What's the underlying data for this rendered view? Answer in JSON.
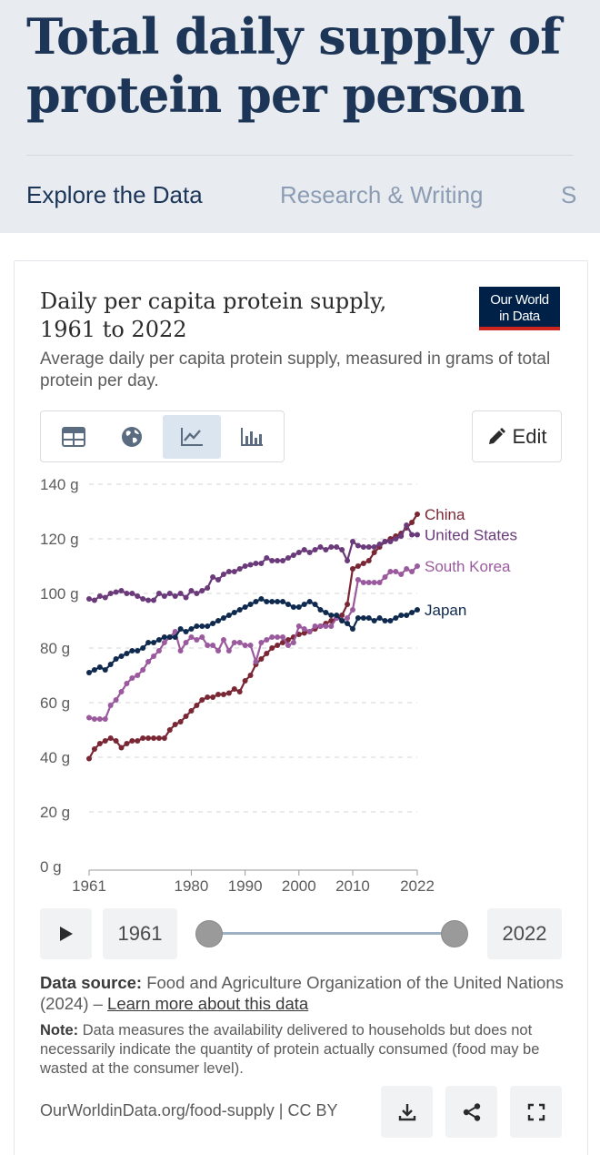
{
  "header": {
    "title": "Total daily supply of protein per person",
    "tabs": [
      "Explore the Data",
      "Research & Writing",
      "S"
    ]
  },
  "chart_card": {
    "logo_line1": "Our World",
    "logo_line2": "in Data",
    "edit_label": "Edit",
    "view_tabs": [
      "table-icon",
      "globe-icon",
      "line-chart-icon",
      "bar-chart-icon"
    ],
    "active_view": "line-chart-icon",
    "start_year": "1961",
    "end_year": "2022",
    "source_label": "Data source:",
    "source_text": "Food and Agriculture Organization of the United Nations (2024) –",
    "source_link": "Learn more about this data",
    "note_label": "Note:",
    "note_text": "Data measures the availability delivered to households but does not necessarily indicate the quantity of protein actually consumed (food may be wasted at the consumer level).",
    "footer_url": "OurWorldinData.org/food-supply | CC BY",
    "footer_buttons": [
      "download-icon",
      "share-icon",
      "fullscreen-icon"
    ]
  },
  "chart_data": {
    "type": "line",
    "title": "Daily per capita protein supply, 1961 to 2022",
    "subtitle": "Average daily per capita protein supply, measured in grams of total protein per day.",
    "unit": " g",
    "ylim": [
      0,
      140
    ],
    "yticks": [
      0,
      20,
      40,
      60,
      80,
      100,
      120,
      140
    ],
    "xticks": [
      1961,
      1980,
      1990,
      2000,
      2010,
      2022
    ],
    "x_start": 1961,
    "x_end": 2022,
    "gridlines": true,
    "legend_placement": "right-line-labels",
    "series": [
      {
        "name": "China",
        "color": "#7a2735",
        "anchors": [
          [
            1961,
            39.5
          ],
          [
            1962,
            43
          ],
          [
            1963,
            45
          ],
          [
            1964,
            46
          ],
          [
            1965,
            47
          ],
          [
            1966,
            46
          ],
          [
            1967,
            43.5
          ],
          [
            1968,
            45
          ],
          [
            1969,
            46
          ],
          [
            1970,
            46
          ],
          [
            1971,
            47
          ],
          [
            1972,
            47
          ],
          [
            1973,
            47
          ],
          [
            1974,
            47
          ],
          [
            1975,
            47
          ],
          [
            1976,
            50
          ],
          [
            1977,
            52
          ],
          [
            1978,
            53
          ],
          [
            1979,
            55
          ],
          [
            1980,
            57
          ],
          [
            1981,
            59
          ],
          [
            1982,
            61
          ],
          [
            1983,
            62
          ],
          [
            1984,
            62
          ],
          [
            1985,
            63
          ],
          [
            1986,
            63
          ],
          [
            1987,
            63.5
          ],
          [
            1988,
            65
          ],
          [
            1989,
            64
          ],
          [
            1990,
            68
          ],
          [
            1991,
            70
          ],
          [
            1992,
            74
          ],
          [
            1993,
            76
          ],
          [
            1994,
            78
          ],
          [
            1995,
            80
          ],
          [
            1996,
            81
          ],
          [
            1997,
            82
          ],
          [
            1998,
            83
          ],
          [
            1999,
            84
          ],
          [
            2000,
            85
          ],
          [
            2001,
            85.5
          ],
          [
            2002,
            86
          ],
          [
            2003,
            87
          ],
          [
            2004,
            88
          ],
          [
            2005,
            89
          ],
          [
            2006,
            90
          ],
          [
            2007,
            91
          ],
          [
            2008,
            92
          ],
          [
            2009,
            96
          ],
          [
            2010,
            109
          ],
          [
            2011,
            110
          ],
          [
            2012,
            111
          ],
          [
            2013,
            112
          ],
          [
            2014,
            115
          ],
          [
            2015,
            117
          ],
          [
            2016,
            119
          ],
          [
            2017,
            120
          ],
          [
            2018,
            121
          ],
          [
            2019,
            122
          ],
          [
            2020,
            124
          ],
          [
            2021,
            126
          ],
          [
            2022,
            129
          ]
        ]
      },
      {
        "name": "United States",
        "color": "#6a3a7a",
        "anchors": [
          [
            1961,
            98
          ],
          [
            1962,
            97.5
          ],
          [
            1963,
            99
          ],
          [
            1964,
            98.5
          ],
          [
            1965,
            100
          ],
          [
            1966,
            100.5
          ],
          [
            1967,
            101
          ],
          [
            1968,
            100
          ],
          [
            1969,
            100
          ],
          [
            1970,
            99
          ],
          [
            1971,
            98
          ],
          [
            1972,
            97.5
          ],
          [
            1973,
            97.5
          ],
          [
            1974,
            100
          ],
          [
            1975,
            99
          ],
          [
            1976,
            100
          ],
          [
            1977,
            99
          ],
          [
            1978,
            100
          ],
          [
            1979,
            98.5
          ],
          [
            1980,
            101
          ],
          [
            1981,
            100
          ],
          [
            1982,
            101
          ],
          [
            1983,
            102
          ],
          [
            1984,
            106
          ],
          [
            1985,
            105
          ],
          [
            1986,
            107
          ],
          [
            1987,
            108
          ],
          [
            1988,
            108
          ],
          [
            1989,
            109
          ],
          [
            1990,
            110
          ],
          [
            1991,
            110.5
          ],
          [
            1992,
            111
          ],
          [
            1993,
            111
          ],
          [
            1994,
            113
          ],
          [
            1995,
            112
          ],
          [
            1996,
            112
          ],
          [
            1997,
            112
          ],
          [
            1998,
            113
          ],
          [
            1999,
            114
          ],
          [
            2000,
            115
          ],
          [
            2001,
            116
          ],
          [
            2002,
            115
          ],
          [
            2003,
            116
          ],
          [
            2004,
            117
          ],
          [
            2005,
            116
          ],
          [
            2006,
            117
          ],
          [
            2007,
            117
          ],
          [
            2008,
            116
          ],
          [
            2009,
            112
          ],
          [
            2010,
            119
          ],
          [
            2011,
            117.5
          ],
          [
            2012,
            117
          ],
          [
            2013,
            117
          ],
          [
            2014,
            117
          ],
          [
            2015,
            118
          ],
          [
            2016,
            119
          ],
          [
            2017,
            119
          ],
          [
            2018,
            120
          ],
          [
            2019,
            121
          ],
          [
            2020,
            125
          ],
          [
            2021,
            121.5
          ],
          [
            2022,
            121.5
          ]
        ]
      },
      {
        "name": "South Korea",
        "color": "#9b5a9e",
        "anchors": [
          [
            1961,
            54.5
          ],
          [
            1962,
            54
          ],
          [
            1963,
            54
          ],
          [
            1964,
            54
          ],
          [
            1965,
            59
          ],
          [
            1966,
            61
          ],
          [
            1967,
            64
          ],
          [
            1968,
            67
          ],
          [
            1969,
            69
          ],
          [
            1970,
            70
          ],
          [
            1971,
            72
          ],
          [
            1972,
            75
          ],
          [
            1973,
            77
          ],
          [
            1974,
            79
          ],
          [
            1975,
            82
          ],
          [
            1976,
            84
          ],
          [
            1977,
            86
          ],
          [
            1978,
            79
          ],
          [
            1979,
            82
          ],
          [
            1980,
            84
          ],
          [
            1981,
            83
          ],
          [
            1982,
            84
          ],
          [
            1983,
            81
          ],
          [
            1984,
            81
          ],
          [
            1985,
            79
          ],
          [
            1986,
            83
          ],
          [
            1987,
            79
          ],
          [
            1988,
            82
          ],
          [
            1989,
            82
          ],
          [
            1990,
            81
          ],
          [
            1991,
            81
          ],
          [
            1992,
            75
          ],
          [
            1993,
            82
          ],
          [
            1994,
            83
          ],
          [
            1995,
            84
          ],
          [
            1996,
            84
          ],
          [
            1997,
            84
          ],
          [
            1998,
            81
          ],
          [
            1999,
            82
          ],
          [
            2000,
            88
          ],
          [
            2001,
            87
          ],
          [
            2002,
            86
          ],
          [
            2003,
            88
          ],
          [
            2004,
            88
          ],
          [
            2005,
            88
          ],
          [
            2006,
            88
          ],
          [
            2007,
            91
          ],
          [
            2008,
            90
          ],
          [
            2009,
            91
          ],
          [
            2010,
            94
          ],
          [
            2011,
            105
          ],
          [
            2012,
            104
          ],
          [
            2013,
            104
          ],
          [
            2014,
            104
          ],
          [
            2015,
            104
          ],
          [
            2016,
            106
          ],
          [
            2017,
            108
          ],
          [
            2018,
            108
          ],
          [
            2019,
            107
          ],
          [
            2020,
            109
          ],
          [
            2021,
            108
          ],
          [
            2022,
            110
          ]
        ]
      },
      {
        "name": "Japan",
        "color": "#0f2a4e",
        "anchors": [
          [
            1961,
            71
          ],
          [
            1962,
            72
          ],
          [
            1963,
            73
          ],
          [
            1964,
            72
          ],
          [
            1965,
            74
          ],
          [
            1966,
            76
          ],
          [
            1967,
            77
          ],
          [
            1968,
            78
          ],
          [
            1969,
            79
          ],
          [
            1970,
            79
          ],
          [
            1971,
            80
          ],
          [
            1972,
            82
          ],
          [
            1973,
            82
          ],
          [
            1974,
            83
          ],
          [
            1975,
            84
          ],
          [
            1976,
            84
          ],
          [
            1977,
            84
          ],
          [
            1978,
            87
          ],
          [
            1979,
            86
          ],
          [
            1980,
            87
          ],
          [
            1981,
            88
          ],
          [
            1982,
            88
          ],
          [
            1983,
            88
          ],
          [
            1984,
            89
          ],
          [
            1985,
            90
          ],
          [
            1986,
            91
          ],
          [
            1987,
            92
          ],
          [
            1988,
            93
          ],
          [
            1989,
            94
          ],
          [
            1990,
            95
          ],
          [
            1991,
            96
          ],
          [
            1992,
            97
          ],
          [
            1993,
            98
          ],
          [
            1994,
            97
          ],
          [
            1995,
            97
          ],
          [
            1996,
            97
          ],
          [
            1997,
            97
          ],
          [
            1998,
            96
          ],
          [
            1999,
            95
          ],
          [
            2000,
            95
          ],
          [
            2001,
            96
          ],
          [
            2002,
            97
          ],
          [
            2003,
            96
          ],
          [
            2004,
            94
          ],
          [
            2005,
            93
          ],
          [
            2006,
            92
          ],
          [
            2007,
            92
          ],
          [
            2008,
            90
          ],
          [
            2009,
            89
          ],
          [
            2010,
            87
          ],
          [
            2011,
            91
          ],
          [
            2012,
            91
          ],
          [
            2013,
            91
          ],
          [
            2014,
            90
          ],
          [
            2015,
            91
          ],
          [
            2016,
            90
          ],
          [
            2017,
            90
          ],
          [
            2018,
            91
          ],
          [
            2019,
            92
          ],
          [
            2020,
            92
          ],
          [
            2021,
            93
          ],
          [
            2022,
            94
          ]
        ]
      }
    ]
  }
}
